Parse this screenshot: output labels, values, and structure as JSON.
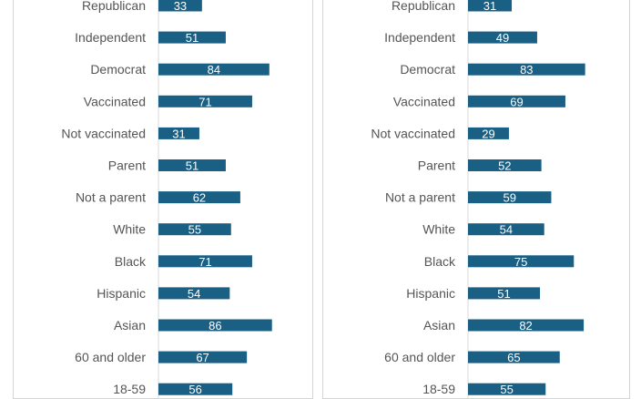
{
  "colors": {
    "bar": "#1a5f84",
    "axis": "#d9d9d9",
    "label": "#555555",
    "value_text": "#ffffff"
  },
  "chart_data": [
    {
      "type": "bar",
      "orientation": "horizontal",
      "categories": [
        "Republican",
        "Independent",
        "Democrat",
        "Vaccinated",
        "Not vaccinated",
        "Parent",
        "Not a parent",
        "White",
        "Black",
        "Hispanic",
        "Asian",
        "60 and older",
        "18-59"
      ],
      "values": [
        33,
        51,
        84,
        71,
        31,
        51,
        62,
        55,
        71,
        54,
        86,
        67,
        56
      ],
      "xlim": [
        0,
        100
      ],
      "grid": false,
      "legend": "none"
    },
    {
      "type": "bar",
      "orientation": "horizontal",
      "categories": [
        "Republican",
        "Independent",
        "Democrat",
        "Vaccinated",
        "Not vaccinated",
        "Parent",
        "Not a parent",
        "White",
        "Black",
        "Hispanic",
        "Asian",
        "60 and older",
        "18-59"
      ],
      "values": [
        31,
        49,
        83,
        69,
        29,
        52,
        59,
        54,
        75,
        51,
        82,
        65,
        55
      ],
      "xlim": [
        0,
        100
      ],
      "grid": false,
      "legend": "none"
    }
  ]
}
